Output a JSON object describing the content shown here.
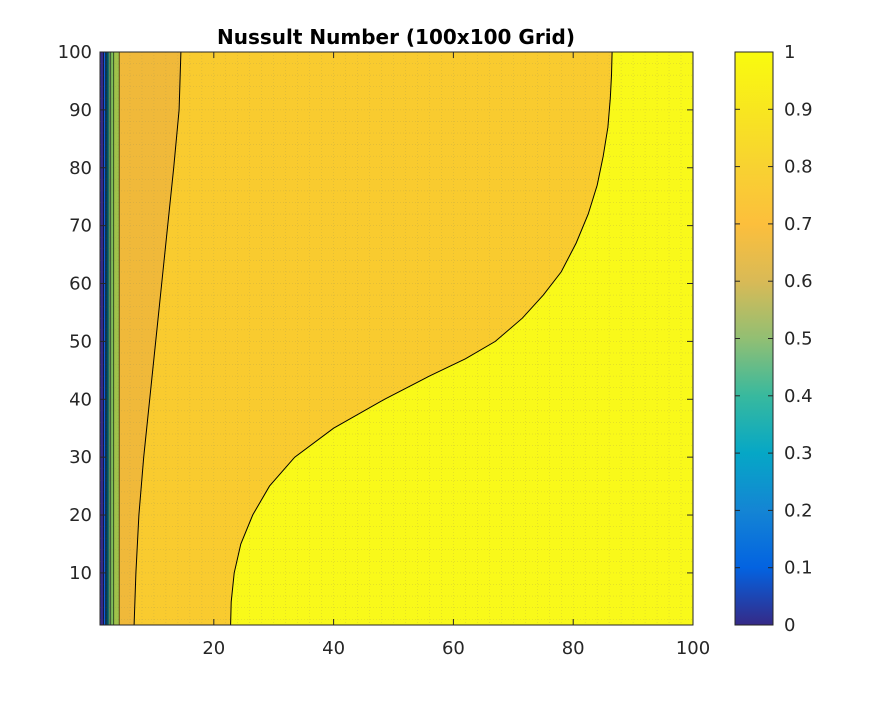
{
  "chart_data": {
    "type": "contourf",
    "title": "Nussult Number (100x100 Grid)",
    "xlabel": "",
    "ylabel": "",
    "xlim": [
      1,
      100
    ],
    "ylim": [
      1,
      100
    ],
    "x_ticks": [
      20,
      40,
      60,
      80,
      100
    ],
    "y_ticks": [
      10,
      20,
      30,
      40,
      50,
      60,
      70,
      80,
      90,
      100
    ],
    "grid": true,
    "colorbar": {
      "colormap": "parula",
      "limits": [
        0,
        1
      ],
      "ticks": [
        0,
        0.1,
        0.2,
        0.3,
        0.4,
        0.5,
        0.6,
        0.7,
        0.8,
        0.9,
        1
      ],
      "tick_labels": [
        "0",
        "0.1",
        "0.2",
        "0.3",
        "0.4",
        "0.5",
        "0.6",
        "0.7",
        "0.8",
        "0.9",
        "1"
      ]
    },
    "contour_levels": [
      0.1,
      0.2,
      0.3,
      0.4,
      0.5,
      0.6,
      0.7,
      0.8,
      0.9,
      1.0
    ],
    "contour_lines": [
      {
        "level": 0.9,
        "points": [
          [
            14.5,
            100
          ],
          [
            14.2,
            90
          ],
          [
            13.3,
            80
          ],
          [
            12.3,
            70
          ],
          [
            11.3,
            60
          ],
          [
            10.3,
            50
          ],
          [
            9.3,
            40
          ],
          [
            8.3,
            30
          ],
          [
            7.5,
            20
          ],
          [
            7.0,
            10
          ],
          [
            6.7,
            1
          ]
        ]
      },
      {
        "level": 1.0,
        "points": [
          [
            22.8,
            1
          ],
          [
            22.9,
            5
          ],
          [
            23.4,
            10
          ],
          [
            24.5,
            15
          ],
          [
            26.5,
            20
          ],
          [
            29.3,
            25
          ],
          [
            33.5,
            30
          ],
          [
            40,
            35
          ],
          [
            48.5,
            40
          ],
          [
            56,
            44
          ],
          [
            62,
            47
          ],
          [
            67,
            50
          ],
          [
            71.5,
            54
          ],
          [
            75,
            58
          ],
          [
            78,
            62
          ],
          [
            80.5,
            67
          ],
          [
            82.5,
            72
          ],
          [
            84,
            77
          ],
          [
            85,
            82
          ],
          [
            85.8,
            87
          ],
          [
            86.2,
            92
          ],
          [
            86.4,
            96
          ],
          [
            86.5,
            100
          ]
        ]
      }
    ],
    "band_boundaries": [
      {
        "level": 0.1,
        "x": 1.6
      },
      {
        "level": 0.2,
        "x": 1.9
      },
      {
        "level": 0.3,
        "x": 2.1
      },
      {
        "level": 0.4,
        "x": 2.3
      },
      {
        "level": 0.5,
        "x": 2.5
      },
      {
        "level": 0.6,
        "x": 2.8
      },
      {
        "level": 0.7,
        "x": 3.3
      },
      {
        "level": 0.8,
        "x": 4.2
      }
    ],
    "band_colors": {
      "0.0-0.1": "#352a87",
      "0.1-0.2": "#0f5cdd",
      "0.2-0.3": "#1481d6",
      "0.3-0.4": "#06a4ca",
      "0.4-0.5": "#2eb7a4",
      "0.5-0.6": "#87bf77",
      "0.6-0.7": "#7fbf5a",
      "0.7-0.8": "#9fc24a",
      "0.8-0.9": "#f0b93a",
      "0.9-1.0": "#f9cb2f",
      "1.0+": "#f9f91a"
    }
  }
}
